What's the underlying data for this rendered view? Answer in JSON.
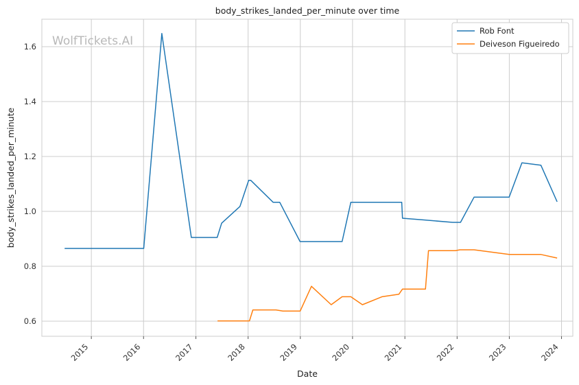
{
  "chart_data": {
    "type": "line",
    "title": "body_strikes_landed_per_minute over time",
    "xlabel": "Date",
    "ylabel": "body_strikes_landed_per_minute",
    "watermark": "WolfTickets.AI",
    "xlim": [
      "2014-01-20",
      "2024-03-20"
    ],
    "ylim": [
      0.545,
      1.7
    ],
    "x_ticks": [
      {
        "date": "2015-01-01",
        "label": "2015"
      },
      {
        "date": "2016-01-01",
        "label": "2016"
      },
      {
        "date": "2017-01-01",
        "label": "2017"
      },
      {
        "date": "2018-01-01",
        "label": "2018"
      },
      {
        "date": "2019-01-01",
        "label": "2019"
      },
      {
        "date": "2020-01-01",
        "label": "2020"
      },
      {
        "date": "2021-01-01",
        "label": "2021"
      },
      {
        "date": "2022-01-01",
        "label": "2022"
      },
      {
        "date": "2023-01-01",
        "label": "2023"
      },
      {
        "date": "2024-01-01",
        "label": "2024"
      }
    ],
    "y_ticks": [
      {
        "value": 0.6,
        "label": "0.6"
      },
      {
        "value": 0.8,
        "label": "0.8"
      },
      {
        "value": 1.0,
        "label": "1.0"
      },
      {
        "value": 1.2,
        "label": "1.2"
      },
      {
        "value": 1.4,
        "label": "1.4"
      },
      {
        "value": 1.6,
        "label": "1.6"
      }
    ],
    "grid": true,
    "legend_position": "top-right",
    "series": [
      {
        "name": "Rob Font",
        "color": "#1f77b4",
        "points": [
          {
            "x": "2014-06-28",
            "y": 0.865
          },
          {
            "x": "2016-01-02",
            "y": 0.865
          },
          {
            "x": "2016-05-08",
            "y": 1.648
          },
          {
            "x": "2016-11-30",
            "y": 0.905
          },
          {
            "x": "2017-05-30",
            "y": 0.905
          },
          {
            "x": "2017-06-30",
            "y": 0.957
          },
          {
            "x": "2017-11-05",
            "y": 1.018
          },
          {
            "x": "2018-01-05",
            "y": 1.113
          },
          {
            "x": "2018-01-20",
            "y": 1.113
          },
          {
            "x": "2018-06-25",
            "y": 1.033
          },
          {
            "x": "2018-08-10",
            "y": 1.033
          },
          {
            "x": "2018-12-30",
            "y": 0.89
          },
          {
            "x": "2019-10-20",
            "y": 0.89
          },
          {
            "x": "2019-12-20",
            "y": 1.033
          },
          {
            "x": "2020-12-10",
            "y": 1.033
          },
          {
            "x": "2020-12-15",
            "y": 0.975
          },
          {
            "x": "2021-05-30",
            "y": 0.968
          },
          {
            "x": "2021-12-01",
            "y": 0.96
          },
          {
            "x": "2022-01-25",
            "y": 0.96
          },
          {
            "x": "2022-04-30",
            "y": 1.052
          },
          {
            "x": "2022-12-31",
            "y": 1.052
          },
          {
            "x": "2023-03-30",
            "y": 1.177
          },
          {
            "x": "2023-08-10",
            "y": 1.168
          },
          {
            "x": "2023-12-01",
            "y": 1.035
          }
        ]
      },
      {
        "name": "Deiveson Figueiredo",
        "color": "#ff7f0e",
        "points": [
          {
            "x": "2017-06-01",
            "y": 0.601
          },
          {
            "x": "2018-01-10",
            "y": 0.601
          },
          {
            "x": "2018-02-03",
            "y": 0.641
          },
          {
            "x": "2018-07-15",
            "y": 0.641
          },
          {
            "x": "2018-09-01",
            "y": 0.637
          },
          {
            "x": "2018-12-31",
            "y": 0.637
          },
          {
            "x": "2019-03-20",
            "y": 0.727
          },
          {
            "x": "2019-08-05",
            "y": 0.66
          },
          {
            "x": "2019-10-20",
            "y": 0.689
          },
          {
            "x": "2019-12-20",
            "y": 0.689
          },
          {
            "x": "2020-03-10",
            "y": 0.66
          },
          {
            "x": "2020-07-25",
            "y": 0.689
          },
          {
            "x": "2020-11-20",
            "y": 0.698
          },
          {
            "x": "2020-12-15",
            "y": 0.717
          },
          {
            "x": "2021-05-25",
            "y": 0.717
          },
          {
            "x": "2021-06-15",
            "y": 0.857
          },
          {
            "x": "2021-12-20",
            "y": 0.857
          },
          {
            "x": "2022-01-20",
            "y": 0.86
          },
          {
            "x": "2022-04-30",
            "y": 0.86
          },
          {
            "x": "2022-12-31",
            "y": 0.843
          },
          {
            "x": "2023-08-10",
            "y": 0.843
          },
          {
            "x": "2023-12-01",
            "y": 0.83
          }
        ]
      }
    ]
  }
}
